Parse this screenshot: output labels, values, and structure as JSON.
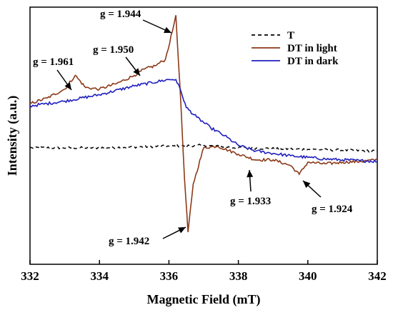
{
  "chart_data": {
    "type": "line",
    "xlabel": "Magnetic Field (mT)",
    "ylabel": "Intensity (a.u.)",
    "xlim": [
      332,
      342
    ],
    "ylim": [
      -1.45,
      1.75
    ],
    "xticks": [
      "332",
      "334",
      "336",
      "338",
      "340",
      "342"
    ],
    "grid": false,
    "legend": "top-right",
    "series": [
      {
        "name": "T",
        "style": "dashed",
        "color": "#000000",
        "x": [
          332,
          334,
          336,
          337,
          338,
          340,
          342
        ],
        "y": [
          0.0,
          0.0,
          0.02,
          0.03,
          0.0,
          -0.02,
          -0.04
        ]
      },
      {
        "name": "DT in light",
        "style": "solid",
        "color": "#8B3A1A",
        "x": [
          332,
          332.5,
          333,
          333.3,
          333.6,
          334,
          334.5,
          335,
          335.3,
          335.6,
          335.9,
          336.1,
          336.2,
          336.35,
          336.45,
          336.55,
          336.7,
          337,
          337.4,
          338,
          338.5,
          339,
          339.5,
          339.75,
          340,
          340.5,
          341,
          341.5,
          342
        ],
        "y": [
          0.55,
          0.62,
          0.73,
          0.9,
          0.75,
          0.73,
          0.8,
          0.9,
          0.98,
          1.02,
          1.1,
          1.45,
          1.65,
          0.5,
          -0.4,
          -1.05,
          -0.45,
          0.0,
          0.02,
          -0.08,
          -0.15,
          -0.15,
          -0.22,
          -0.33,
          -0.18,
          -0.2,
          -0.18,
          -0.17,
          -0.15
        ]
      },
      {
        "name": "DT in dark",
        "style": "solid",
        "color": "#1F1FBF",
        "x": [
          332,
          333,
          334,
          335,
          336,
          336.2,
          336.35,
          336.5,
          336.8,
          337.2,
          337.6,
          338,
          338.5,
          339,
          339.5,
          340,
          340.5,
          341,
          341.5,
          342
        ],
        "y": [
          0.52,
          0.58,
          0.66,
          0.77,
          0.85,
          0.85,
          0.7,
          0.5,
          0.38,
          0.25,
          0.15,
          0.03,
          -0.04,
          -0.07,
          -0.1,
          -0.12,
          -0.14,
          -0.15,
          -0.16,
          -0.17
        ]
      }
    ],
    "annotations": [
      {
        "text": "g = 1.944",
        "x": 336.2,
        "y": 1.65
      },
      {
        "text": "g = 1.950",
        "x": 335.3,
        "y": 0.98
      },
      {
        "text": "g = 1.961",
        "x": 333.3,
        "y": 0.9
      },
      {
        "text": "g = 1.942",
        "x": 336.55,
        "y": -1.05
      },
      {
        "text": "g = 1.933",
        "x": 338.2,
        "y": -0.13
      },
      {
        "text": "g = 1.924",
        "x": 339.75,
        "y": -0.33
      }
    ]
  }
}
